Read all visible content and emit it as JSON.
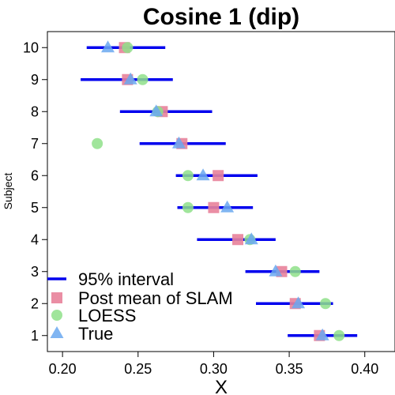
{
  "chart_data": {
    "type": "scatter",
    "title": "Cosine 1 (dip)",
    "xlabel": "X",
    "ylabel": "Subject",
    "xlim": [
      0.19,
      0.42
    ],
    "ylim": [
      0.5,
      10.5
    ],
    "x_ticks": [
      "0.20",
      "0.25",
      "0.30",
      "0.35",
      "0.40"
    ],
    "x_tick_values": [
      0.2,
      0.25,
      0.3,
      0.35,
      0.4
    ],
    "y_ticks": [
      "1",
      "2",
      "3",
      "4",
      "5",
      "6",
      "7",
      "8",
      "9",
      "10"
    ],
    "y_tick_values": [
      1,
      2,
      3,
      4,
      5,
      6,
      7,
      8,
      9,
      10
    ],
    "legend_position": "bottom-left",
    "colors": {
      "interval": "#0000ee",
      "post_mean": "#e8829a",
      "loess": "#8fe08a",
      "true": "#6aa8f0"
    },
    "subjects": [
      1,
      2,
      3,
      4,
      5,
      6,
      7,
      8,
      9,
      10
    ],
    "series": [
      {
        "name": "95% interval",
        "kind": "interval",
        "low": [
          0.349,
          0.328,
          0.321,
          0.289,
          0.276,
          0.275,
          0.251,
          0.238,
          0.212,
          0.216
        ],
        "high": [
          0.395,
          0.379,
          0.37,
          0.341,
          0.326,
          0.329,
          0.308,
          0.299,
          0.273,
          0.268
        ]
      },
      {
        "name": "Post mean of SLAM",
        "kind": "square",
        "values": [
          0.37,
          0.354,
          0.345,
          0.316,
          0.3,
          0.303,
          0.279,
          0.266,
          0.243,
          0.241
        ]
      },
      {
        "name": "LOESS",
        "kind": "circle",
        "values": [
          0.383,
          0.374,
          0.354,
          0.324,
          0.283,
          0.283,
          0.223,
          0.263,
          0.253,
          0.243
        ]
      },
      {
        "name": "True",
        "kind": "triangle",
        "values": [
          0.372,
          0.356,
          0.341,
          0.325,
          0.309,
          0.293,
          0.277,
          0.262,
          0.245,
          0.23
        ]
      }
    ]
  }
}
